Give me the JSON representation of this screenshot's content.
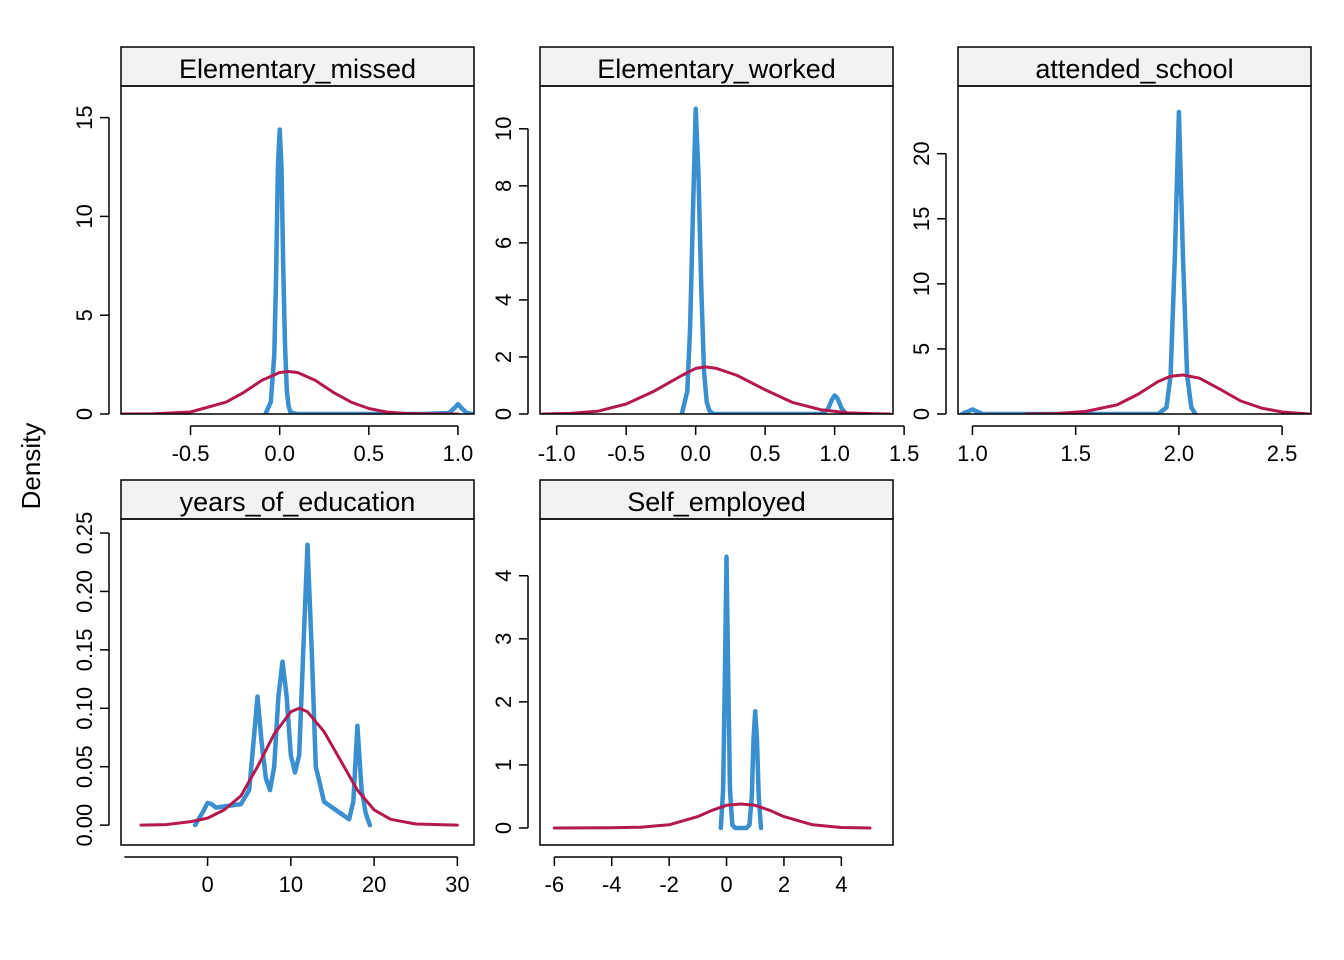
{
  "ylabel": "Density",
  "colors": {
    "observed": "#3a8fd0",
    "normal": "#b5174f",
    "strip": "#f2f2f2"
  },
  "chart_data": [
    {
      "type": "line",
      "title": "Elementary_missed",
      "xlim": [
        -0.89,
        1.09
      ],
      "ylim": [
        0,
        16.6
      ],
      "xticks": [
        -0.5,
        0.0,
        0.5,
        1.0
      ],
      "xticklabels": [
        "-0.5",
        "0.0",
        "0.5",
        "1.0"
      ],
      "xtick_ext": [
        -0.5,
        1.0
      ],
      "yticks": [
        0,
        5,
        10,
        15
      ],
      "yticklabels": [
        "0",
        "5",
        "10",
        "15"
      ],
      "series": [
        {
          "kind": "observed",
          "x": [
            -0.08,
            -0.05,
            -0.03,
            -0.02,
            -0.01,
            0.0,
            0.01,
            0.02,
            0.03,
            0.04,
            0.05,
            0.06,
            0.08,
            0.1,
            0.12,
            0.2,
            0.5,
            0.8,
            0.95,
            0.98,
            1.0,
            1.02,
            1.05,
            1.08
          ],
          "y": [
            0,
            0.6,
            3,
            7,
            12.5,
            14.4,
            12.5,
            7.5,
            3.5,
            1.2,
            0.4,
            0.1,
            0.03,
            0,
            0,
            0,
            0,
            0,
            0.05,
            0.3,
            0.5,
            0.3,
            0.05,
            0
          ]
        },
        {
          "kind": "normal",
          "x": [
            -0.88,
            -0.7,
            -0.5,
            -0.3,
            -0.2,
            -0.1,
            0.0,
            0.05,
            0.1,
            0.2,
            0.3,
            0.4,
            0.5,
            0.6,
            0.7,
            0.8,
            0.9,
            1.0
          ],
          "y": [
            0,
            0.01,
            0.1,
            0.6,
            1.1,
            1.7,
            2.1,
            2.15,
            2.1,
            1.7,
            1.1,
            0.6,
            0.28,
            0.1,
            0.03,
            0.01,
            0,
            0
          ]
        }
      ]
    },
    {
      "type": "line",
      "title": "Elementary_worked",
      "xlim": [
        -1.12,
        1.42
      ],
      "ylim": [
        0,
        11.5
      ],
      "xticks": [
        -1.0,
        -0.5,
        0.0,
        0.5,
        1.0,
        1.5
      ],
      "xticklabels": [
        "-1.0",
        "-0.5",
        "0.0",
        "0.5",
        "1.0",
        "1.5"
      ],
      "xtick_ext": [
        -1.0,
        1.5
      ],
      "yticks": [
        0,
        2,
        4,
        6,
        8,
        10
      ],
      "yticklabels": [
        "0",
        "2",
        "4",
        "6",
        "8",
        "10"
      ],
      "series": [
        {
          "kind": "observed",
          "x": [
            -0.1,
            -0.06,
            -0.04,
            -0.02,
            0.0,
            0.02,
            0.04,
            0.06,
            0.08,
            0.1,
            0.13,
            0.2,
            0.5,
            0.9,
            0.95,
            0.98,
            1.0,
            1.02,
            1.05,
            1.08,
            1.1
          ],
          "y": [
            0,
            0.8,
            3,
            7,
            10.7,
            8.5,
            4.5,
            1.5,
            0.4,
            0.1,
            0,
            0,
            0,
            0,
            0.15,
            0.5,
            0.65,
            0.55,
            0.2,
            0.02,
            0
          ]
        },
        {
          "kind": "normal",
          "x": [
            -1.1,
            -0.9,
            -0.7,
            -0.5,
            -0.3,
            -0.1,
            0.0,
            0.07,
            0.15,
            0.3,
            0.5,
            0.7,
            0.9,
            1.1,
            1.3,
            1.4
          ],
          "y": [
            0,
            0.02,
            0.1,
            0.35,
            0.8,
            1.35,
            1.6,
            1.65,
            1.6,
            1.35,
            0.85,
            0.4,
            0.15,
            0.04,
            0.01,
            0
          ]
        }
      ]
    },
    {
      "type": "line",
      "title": "attended_school",
      "xlim": [
        0.93,
        2.64
      ],
      "ylim": [
        0,
        25.2
      ],
      "xticks": [
        1.0,
        1.5,
        2.0,
        2.5
      ],
      "xticklabels": [
        "1.0",
        "1.5",
        "2.0",
        "2.5"
      ],
      "xtick_ext": [
        1.0,
        2.5
      ],
      "yticks": [
        0,
        5,
        10,
        15,
        20
      ],
      "yticklabels": [
        "0",
        "5",
        "10",
        "15",
        "20"
      ],
      "series": [
        {
          "kind": "observed",
          "x": [
            0.95,
            0.98,
            1.0,
            1.02,
            1.05,
            1.1,
            1.5,
            1.9,
            1.94,
            1.96,
            1.98,
            2.0,
            2.02,
            2.04,
            2.06,
            2.08
          ],
          "y": [
            0,
            0.2,
            0.35,
            0.2,
            0,
            0,
            0,
            0,
            0.5,
            3,
            12,
            23.2,
            12,
            3,
            0.5,
            0
          ]
        },
        {
          "kind": "normal",
          "x": [
            1.26,
            1.4,
            1.55,
            1.7,
            1.8,
            1.9,
            1.96,
            2.02,
            2.1,
            2.2,
            2.3,
            2.4,
            2.5,
            2.6,
            2.63
          ],
          "y": [
            0,
            0.03,
            0.2,
            0.7,
            1.5,
            2.5,
            2.9,
            3.0,
            2.75,
            1.9,
            1.0,
            0.45,
            0.15,
            0.04,
            0
          ]
        }
      ]
    },
    {
      "type": "line",
      "title": "years_of_education",
      "xlim": [
        -10.4,
        32.0
      ],
      "ylim": [
        -0.017,
        0.262
      ],
      "xticks": [
        0,
        10,
        20,
        30
      ],
      "xticklabels": [
        "0",
        "10",
        "20",
        "30"
      ],
      "xtick_ext": [
        -10,
        30
      ],
      "yticks": [
        0.0,
        0.05,
        0.1,
        0.15,
        0.2,
        0.25
      ],
      "yticklabels": [
        "0.00",
        "0.05",
        "0.10",
        "0.15",
        "0.20",
        "0.25"
      ],
      "series": [
        {
          "kind": "observed",
          "x": [
            -1.5,
            -0.5,
            0,
            0.5,
            1,
            2,
            3,
            4,
            5,
            5.5,
            6,
            6.5,
            7,
            7.5,
            8,
            8.5,
            9,
            9.5,
            10,
            10.5,
            11,
            11.5,
            12,
            12.5,
            13,
            14,
            15,
            16,
            17,
            17.5,
            18,
            18.5,
            19,
            19.5
          ],
          "y": [
            0,
            0.012,
            0.019,
            0.018,
            0.015,
            0.016,
            0.017,
            0.018,
            0.03,
            0.07,
            0.11,
            0.07,
            0.04,
            0.03,
            0.05,
            0.11,
            0.14,
            0.11,
            0.06,
            0.045,
            0.06,
            0.15,
            0.24,
            0.15,
            0.05,
            0.02,
            0.015,
            0.01,
            0.005,
            0.02,
            0.085,
            0.03,
            0.01,
            0
          ]
        },
        {
          "kind": "normal",
          "x": [
            -8,
            -5,
            -2,
            0,
            2,
            4,
            6,
            8,
            10,
            11,
            12,
            14,
            16,
            18,
            20,
            22,
            25,
            30
          ],
          "y": [
            0,
            0.0005,
            0.003,
            0.006,
            0.013,
            0.025,
            0.05,
            0.078,
            0.097,
            0.1,
            0.097,
            0.08,
            0.055,
            0.03,
            0.013,
            0.005,
            0.001,
            0
          ]
        }
      ]
    },
    {
      "type": "line",
      "title": "Self_employed",
      "xlim": [
        -6.5,
        5.8
      ],
      "ylim": [
        -0.27,
        4.9
      ],
      "xticks": [
        -6,
        -4,
        -2,
        0,
        2,
        4
      ],
      "xticklabels": [
        "-6",
        "-4",
        "-2",
        "0",
        "2",
        "4"
      ],
      "xtick_ext": [
        -6,
        4
      ],
      "yticks": [
        0,
        1,
        2,
        3,
        4
      ],
      "yticklabels": [
        "0",
        "1",
        "2",
        "3",
        "4"
      ],
      "series": [
        {
          "kind": "observed",
          "x": [
            -0.2,
            -0.12,
            -0.06,
            0,
            0.06,
            0.12,
            0.2,
            0.3,
            0.5,
            0.7,
            0.8,
            0.88,
            0.94,
            1.0,
            1.06,
            1.12,
            1.2
          ],
          "y": [
            0,
            0.6,
            2.3,
            4.3,
            2.3,
            0.6,
            0.05,
            0,
            0,
            0,
            0.05,
            0.5,
            1.4,
            1.85,
            1.4,
            0.5,
            0
          ]
        },
        {
          "kind": "normal",
          "x": [
            -6,
            -4,
            -3,
            -2,
            -1,
            -0.5,
            0,
            0.5,
            1,
            1.5,
            2,
            3,
            4,
            5
          ],
          "y": [
            0,
            0.002,
            0.012,
            0.05,
            0.18,
            0.28,
            0.36,
            0.38,
            0.36,
            0.28,
            0.18,
            0.05,
            0.008,
            0
          ]
        }
      ]
    }
  ]
}
